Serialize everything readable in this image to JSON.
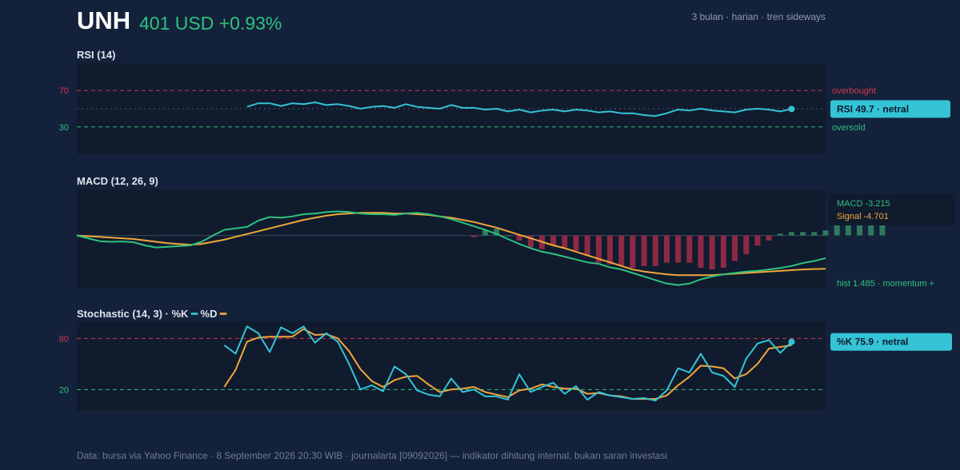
{
  "header": {
    "ticker": "UNH",
    "price": "401 USD +0.93%",
    "subtitle": "3 bulan · harian · tren sideways"
  },
  "footer": "Data: bursa via Yahoo Finance · 8 September 2026 20:30 WIB · journalarta [09092026] — indikator dihitung internal, bukan saran investasi",
  "colors": {
    "background": "#14213a",
    "panel": "#101b2e",
    "rsi_line": "#35c3d6",
    "macd_line": "#2ec27e",
    "signal_line": "#f0a73a",
    "stoch_k": "#35c3d6",
    "stoch_d": "#f0a73a",
    "overbought": "#d4364f",
    "oversold": "#2ec27e",
    "hist_positive": "#2f7a5c",
    "hist_negative": "#8c2a45"
  },
  "chart_data": [
    {
      "type": "line",
      "title": "RSI (14)",
      "ylim": [
        0,
        100
      ],
      "ticks": [
        70,
        30
      ],
      "ref_lines": [
        {
          "value": 70,
          "label": "overbought",
          "color": "#d4364f"
        },
        {
          "value": 50,
          "label": "",
          "color": "#4b5a72"
        },
        {
          "value": 30,
          "label": "oversold",
          "color": "#2ec27e"
        }
      ],
      "x_start": 15,
      "series": [
        {
          "name": "",
          "values": [
            52,
            56,
            56,
            53,
            56,
            55,
            57,
            54,
            55,
            53,
            50,
            52,
            53,
            51,
            55,
            52,
            51,
            50,
            54,
            51,
            51,
            49,
            50,
            47,
            49,
            46,
            48,
            49,
            47,
            49,
            48,
            46,
            47,
            45,
            45,
            43,
            42,
            45,
            49,
            48,
            50,
            48,
            47,
            46,
            49,
            50,
            49,
            47,
            49.7
          ]
        }
      ],
      "badge": "RSI 49.7 · netral"
    },
    {
      "type": "line",
      "title": "MACD (12, 26, 9)",
      "ylim": [
        -7.5,
        6.5
      ],
      "series": [
        {
          "name": "MACD",
          "values": [
            0.0,
            -0.4,
            -0.8,
            -0.9,
            -0.85,
            -0.95,
            -1.4,
            -1.7,
            -1.6,
            -1.5,
            -1.4,
            -0.9,
            0.0,
            0.8,
            1.0,
            1.2,
            2.1,
            2.6,
            2.5,
            2.7,
            3.0,
            3.1,
            3.3,
            3.4,
            3.3,
            3.1,
            3.0,
            3.0,
            2.9,
            3.1,
            3.2,
            3.0,
            2.7,
            2.3,
            1.8,
            1.3,
            0.8,
            0.2,
            -0.5,
            -1.2,
            -1.8,
            -2.3,
            -2.6,
            -3.0,
            -3.4,
            -3.8,
            -4.0,
            -4.5,
            -4.8,
            -5.3,
            -5.8,
            -6.3,
            -6.8,
            -7.0,
            -6.8,
            -6.2,
            -5.8,
            -5.5,
            -5.3,
            -5.1,
            -5.0,
            -4.8,
            -4.6,
            -4.3,
            -3.9,
            -3.6,
            -3.215
          ]
        },
        {
          "name": "Signal",
          "values": [
            0.0,
            -0.1,
            -0.2,
            -0.3,
            -0.4,
            -0.5,
            -0.7,
            -0.9,
            -1.1,
            -1.2,
            -1.3,
            -1.2,
            -0.9,
            -0.6,
            -0.2,
            0.2,
            0.6,
            1.0,
            1.4,
            1.8,
            2.2,
            2.5,
            2.8,
            3.0,
            3.1,
            3.2,
            3.2,
            3.2,
            3.1,
            3.1,
            3.0,
            2.9,
            2.7,
            2.5,
            2.2,
            1.9,
            1.5,
            1.1,
            0.6,
            0.1,
            -0.4,
            -0.9,
            -1.4,
            -1.8,
            -2.3,
            -2.8,
            -3.3,
            -3.8,
            -4.3,
            -4.8,
            -5.1,
            -5.3,
            -5.5,
            -5.6,
            -5.6,
            -5.6,
            -5.6,
            -5.5,
            -5.4,
            -5.3,
            -5.2,
            -5.1,
            -5.0,
            -4.9,
            -4.8,
            -4.75,
            -4.701
          ]
        }
      ],
      "histogram": {
        "x_start": 35,
        "values": [
          -0.1,
          0.3,
          0.4,
          0.0,
          -0.3,
          -0.7,
          -0.8,
          -0.6,
          -0.7,
          -0.9,
          -1.2,
          -1.6,
          -1.7,
          -1.8,
          -1.9,
          -1.8,
          -1.8,
          -1.6,
          -1.6,
          -1.6,
          -1.9,
          -2.0,
          -1.9,
          -1.5,
          -1.1,
          -0.6,
          -0.3,
          0.1,
          0.2,
          0.2,
          0.2,
          0.3,
          0.6,
          0.9,
          1.1,
          1.3,
          1.485
        ]
      },
      "legend": {
        "macd": "MACD -3.215",
        "signal": "Signal -4.701"
      },
      "hist_label": "hist 1.485 · momentum +"
    },
    {
      "type": "line",
      "title": "Stochastic (14, 3) · %K",
      "title_d": "%D",
      "ylim": [
        -5,
        100
      ],
      "ticks": [
        80,
        20
      ],
      "ref_lines": [
        {
          "value": 80,
          "label": "",
          "color": "#d4364f"
        },
        {
          "value": 20,
          "label": "",
          "color": "#2ec27e"
        }
      ],
      "x_start": 13,
      "series": [
        {
          "name": "%K",
          "values": [
            72,
            62,
            94,
            86,
            64,
            93,
            86,
            94,
            75,
            86,
            76,
            50,
            20,
            25,
            18,
            47,
            38,
            19,
            14,
            12,
            33,
            17,
            20,
            12,
            12,
            8,
            38,
            17,
            23,
            28,
            15,
            24,
            8,
            17,
            13,
            11,
            9,
            10,
            7,
            19,
            45,
            40,
            62,
            40,
            36,
            23,
            56,
            74,
            78,
            63,
            75.9
          ]
        },
        {
          "name": "%D",
          "values": [
            23,
            43,
            76,
            81,
            82,
            82,
            82,
            91,
            84,
            85,
            80,
            65,
            44,
            30,
            23,
            31,
            35,
            36,
            26,
            17,
            20,
            21,
            23,
            17,
            14,
            11,
            19,
            21,
            26,
            23,
            21,
            21,
            15,
            16,
            13,
            12,
            9,
            9,
            9,
            13,
            25,
            35,
            48,
            47,
            45,
            33,
            38,
            50,
            68,
            70,
            72
          ]
        }
      ],
      "badge": "%K 75.9 · netral"
    }
  ]
}
